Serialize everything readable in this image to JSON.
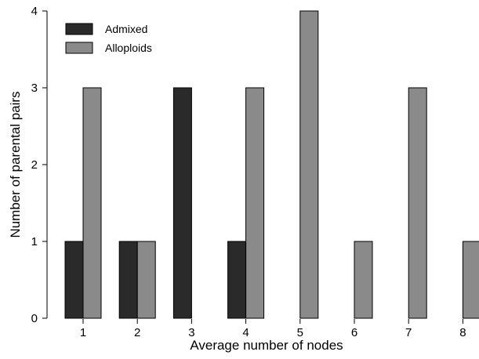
{
  "chart_data": {
    "type": "bar",
    "title": "",
    "xlabel": "Average number of nodes",
    "ylabel": "Number of parental pairs",
    "categories": [
      "1",
      "2",
      "3",
      "4",
      "5",
      "6",
      "7",
      "8"
    ],
    "series": [
      {
        "name": "Admixed",
        "values": [
          1,
          1,
          3,
          1,
          0,
          0,
          0,
          0
        ],
        "color": "#2a2a2a"
      },
      {
        "name": "Alloploids",
        "values": [
          3,
          1,
          0,
          3,
          4,
          1,
          3,
          1
        ],
        "color": "#8a8a8a"
      }
    ],
    "ylim": [
      0,
      4
    ],
    "yticks": [
      "0",
      "1",
      "2",
      "3",
      "4"
    ],
    "grid": false,
    "legend_position": "top-left"
  }
}
